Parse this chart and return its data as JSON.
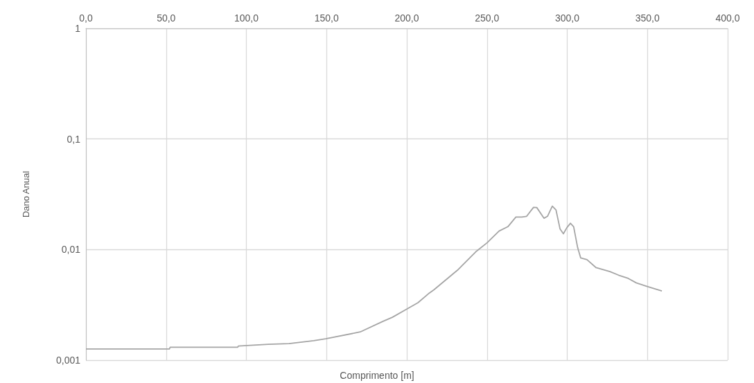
{
  "chart_data": {
    "type": "line",
    "xlabel": "Comprimento [m]",
    "ylabel": "Dano Anual",
    "x": [
      0,
      52,
      52.5,
      94.6,
      95,
      113.6,
      126.6,
      142,
      149.5,
      171,
      185,
      191,
      200,
      207,
      214,
      217,
      231.5,
      243,
      250,
      257.5,
      263,
      268,
      271.7,
      274.7,
      279,
      281,
      285.5,
      287.7,
      290.7,
      293,
      295.5,
      297.6,
      299.8,
      302,
      304,
      306.5,
      308.4,
      312.3,
      318,
      326.6,
      332,
      338,
      343,
      349.5,
      359
    ],
    "series": [
      {
        "color": "#a5a5a5",
        "values": [
          0.00126,
          0.00126,
          0.00131,
          0.00131,
          0.00134,
          0.00139,
          0.00141,
          0.0015,
          0.00156,
          0.0018,
          0.00224,
          0.00244,
          0.0029,
          0.00331,
          0.00404,
          0.00434,
          0.00649,
          0.00955,
          0.0115,
          0.0147,
          0.0161,
          0.0197,
          0.0197,
          0.02,
          0.0241,
          0.024,
          0.0192,
          0.02,
          0.0247,
          0.0228,
          0.0154,
          0.0139,
          0.0158,
          0.0173,
          0.0161,
          0.0104,
          0.0084,
          0.00811,
          0.00686,
          0.00632,
          0.00587,
          0.00549,
          0.005,
          0.00466,
          0.00422
        ]
      }
    ],
    "xlim": [
      0,
      400
    ],
    "xticks": [
      {
        "value": 0,
        "label": "0,0"
      },
      {
        "value": 50,
        "label": "50,0"
      },
      {
        "value": 100,
        "label": "100,0"
      },
      {
        "value": 150,
        "label": "150,0"
      },
      {
        "value": 200,
        "label": "200,0"
      },
      {
        "value": 250,
        "label": "250,0"
      },
      {
        "value": 300,
        "label": "300,0"
      },
      {
        "value": 350,
        "label": "350,0"
      },
      {
        "value": 400,
        "label": "400,0"
      }
    ],
    "ylim": [
      0.001,
      1
    ],
    "yticks": [
      {
        "value": 0.001,
        "label": "0,001"
      },
      {
        "value": 0.01,
        "label": "0,01"
      },
      {
        "value": 0.1,
        "label": "0,1"
      },
      {
        "value": 1,
        "label": "1"
      }
    ],
    "log": "y",
    "grid": true,
    "marker": "none",
    "line_style": "solid"
  }
}
